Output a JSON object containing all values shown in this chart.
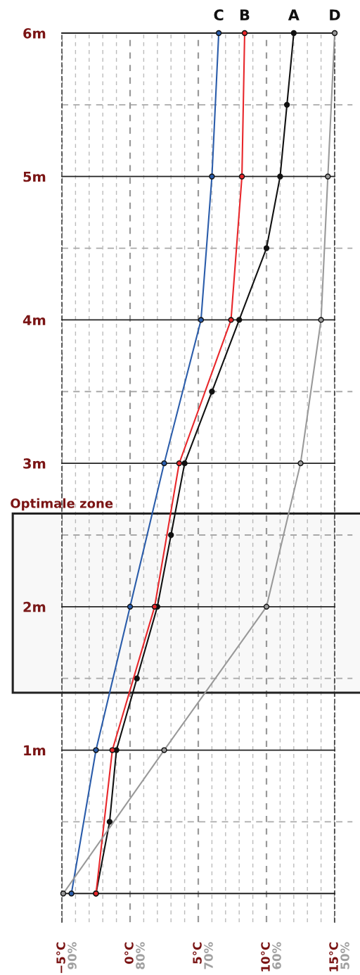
{
  "chart_data": {
    "type": "line",
    "series": [
      {
        "name": "A",
        "color": "#111111",
        "x": [
          -2.5,
          -1.5,
          -1.0,
          0.5,
          2.0,
          3.0,
          4.0,
          6.0,
          8.0,
          10.0,
          11.0,
          11.5,
          12.0
        ],
        "values": [
          0,
          0.5,
          1,
          1.5,
          2,
          2.5,
          3,
          3.5,
          4,
          4.5,
          5,
          5.5,
          6
        ]
      },
      {
        "name": "B",
        "color": "#e8262a",
        "x": [
          -2.5,
          -1.3,
          1.8,
          3.6,
          7.4,
          8.2,
          8.4
        ],
        "values": [
          0,
          1,
          2,
          3,
          4,
          5,
          6
        ]
      },
      {
        "name": "C",
        "color": "#2a5caa",
        "x": [
          -4.3,
          -2.5,
          0.0,
          2.5,
          5.2,
          6.0,
          6.5
        ],
        "values": [
          0,
          1,
          2,
          3,
          4,
          5,
          6
        ]
      },
      {
        "name": "D",
        "color": "#999999",
        "x": [
          -4.9,
          2.5,
          10.0,
          12.5,
          14.0,
          14.5,
          15.0
        ],
        "values": [
          0,
          1,
          2,
          3,
          4,
          5,
          6
        ]
      }
    ],
    "xlim": [
      -5,
      15
    ],
    "xticks": [
      {
        "value": -5,
        "label": "−5°C"
      },
      {
        "value": -4,
        "label": null
      },
      {
        "value": -3,
        "label": null
      },
      {
        "value": -2,
        "label": null
      },
      {
        "value": -1,
        "label": null
      },
      {
        "value": 0,
        "label": "0°C"
      },
      {
        "value": 1,
        "label": null
      },
      {
        "value": 2,
        "label": null
      },
      {
        "value": 3,
        "label": null
      },
      {
        "value": 4,
        "label": null
      },
      {
        "value": 5,
        "label": "5°C"
      },
      {
        "value": 6,
        "label": null
      },
      {
        "value": 7,
        "label": null
      },
      {
        "value": 8,
        "label": null
      },
      {
        "value": 9,
        "label": null
      },
      {
        "value": 10,
        "label": "10°C"
      },
      {
        "value": 11,
        "label": null
      },
      {
        "value": 12,
        "label": null
      },
      {
        "value": 13,
        "label": null
      },
      {
        "value": 14,
        "label": null
      },
      {
        "value": 15,
        "label": "15°C"
      }
    ],
    "x2lim": [
      90,
      50
    ],
    "x2ticks": [
      {
        "value": 90,
        "label": "90%"
      },
      {
        "value": 80,
        "label": "80%"
      },
      {
        "value": 70,
        "label": "70%"
      },
      {
        "value": 60,
        "label": "60%"
      },
      {
        "value": 50,
        "label": "50%"
      }
    ],
    "ylim": [
      -0.2,
      6
    ],
    "yticks": [
      {
        "value": 0,
        "label": null
      },
      {
        "value": 0.5,
        "label": null
      },
      {
        "value": 1,
        "label": "1m"
      },
      {
        "value": 1.5,
        "label": null
      },
      {
        "value": 2,
        "label": "2m"
      },
      {
        "value": 2.5,
        "label": null
      },
      {
        "value": 3,
        "label": "3m"
      },
      {
        "value": 3.5,
        "label": null
      },
      {
        "value": 4,
        "label": "4m"
      },
      {
        "value": 4.5,
        "label": null
      },
      {
        "value": 5,
        "label": "5m"
      },
      {
        "value": 5.5,
        "label": null
      },
      {
        "value": 6,
        "label": "6m"
      }
    ],
    "bands": [
      {
        "axis": "y",
        "from": 1.4,
        "to": 2.65,
        "label": "Optimale zone"
      }
    ],
    "grid": true,
    "legend": false,
    "marker": "circle",
    "line_style": "solid"
  }
}
